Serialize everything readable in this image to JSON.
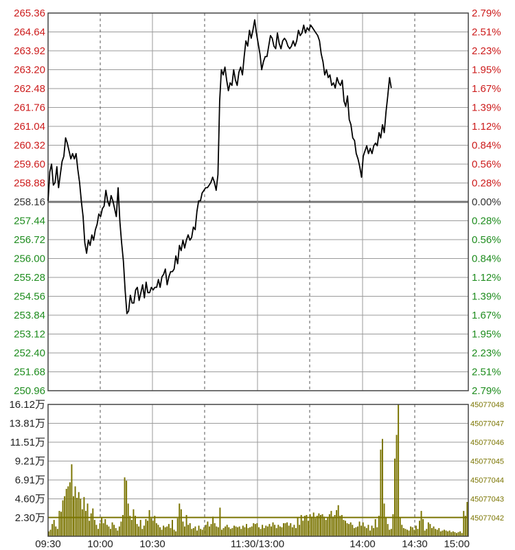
{
  "colors": {
    "up": "#cc1b1b",
    "down": "#1e8c1e",
    "base": "#333333",
    "price_line": "#000000",
    "volume_bar": "#7a7400",
    "grid": "#9a9a9a",
    "frame": "#444444"
  },
  "chart_data": [
    {
      "type": "line",
      "name": "intraday-price",
      "y_left_ticks": [
        "265.36",
        "264.64",
        "263.92",
        "263.20",
        "262.48",
        "261.76",
        "261.04",
        "260.32",
        "259.60",
        "258.88",
        "258.16",
        "257.44",
        "256.72",
        "256.00",
        "255.28",
        "254.56",
        "253.84",
        "253.12",
        "252.40",
        "251.68",
        "250.96"
      ],
      "y_right_ticks": [
        "2.79%",
        "2.51%",
        "2.23%",
        "1.95%",
        "1.67%",
        "1.39%",
        "1.12%",
        "0.84%",
        "0.56%",
        "0.28%",
        "0.00%",
        "0.28%",
        "0.56%",
        "0.84%",
        "1.12%",
        "1.39%",
        "1.67%",
        "1.95%",
        "2.23%",
        "2.51%",
        "2.79%"
      ],
      "base_price": 258.16,
      "ylim": [
        250.96,
        265.36
      ],
      "x_labels": [
        "09:30",
        "10:00",
        "10:30",
        "11:30/13:00",
        "14:00",
        "14:30",
        "15:00"
      ],
      "minutes_total": 240,
      "series": [
        {
          "points": [
            [
              0,
              258.2
            ],
            [
              1,
              259.3
            ],
            [
              2,
              259.6
            ],
            [
              3,
              258.8
            ],
            [
              4,
              258.9
            ],
            [
              5,
              259.5
            ],
            [
              6,
              258.7
            ],
            [
              7,
              259.2
            ],
            [
              8,
              259.7
            ],
            [
              9,
              259.9
            ],
            [
              10,
              260.6
            ],
            [
              11,
              260.4
            ],
            [
              12,
              260.1
            ],
            [
              13,
              259.8
            ],
            [
              14,
              260.0
            ],
            [
              15,
              259.8
            ],
            [
              16,
              260.0
            ],
            [
              17,
              259.4
            ],
            [
              18,
              258.9
            ],
            [
              19,
              258.2
            ],
            [
              20,
              257.6
            ],
            [
              21,
              256.6
            ],
            [
              22,
              256.2
            ],
            [
              23,
              256.7
            ],
            [
              24,
              256.5
            ],
            [
              25,
              256.9
            ],
            [
              26,
              256.7
            ],
            [
              27,
              257.1
            ],
            [
              28,
              257.3
            ],
            [
              29,
              257.7
            ],
            [
              30,
              257.6
            ],
            [
              31,
              257.9
            ],
            [
              32,
              258.0
            ],
            [
              33,
              258.6
            ],
            [
              34,
              258.2
            ],
            [
              35,
              258.0
            ],
            [
              36,
              258.4
            ],
            [
              37,
              258.2
            ],
            [
              38,
              257.9
            ],
            [
              39,
              257.6
            ],
            [
              40,
              258.7
            ],
            [
              41,
              257.4
            ],
            [
              42,
              256.6
            ],
            [
              43,
              255.9
            ],
            [
              44,
              254.8
            ],
            [
              45,
              253.9
            ],
            [
              46,
              254.0
            ],
            [
              47,
              254.6
            ],
            [
              48,
              254.3
            ],
            [
              49,
              254.3
            ],
            [
              50,
              254.8
            ],
            [
              51,
              254.9
            ],
            [
              52,
              254.4
            ],
            [
              53,
              254.7
            ],
            [
              54,
              255.0
            ],
            [
              55,
              254.5
            ],
            [
              56,
              255.1
            ],
            [
              57,
              254.7
            ],
            [
              58,
              254.7
            ],
            [
              59,
              254.9
            ],
            [
              60,
              254.8
            ],
            [
              61,
              254.9
            ],
            [
              62,
              254.9
            ],
            [
              63,
              255.2
            ],
            [
              64,
              254.9
            ],
            [
              65,
              255.3
            ],
            [
              66,
              255.4
            ],
            [
              67,
              255.6
            ],
            [
              68,
              255.0
            ],
            [
              69,
              255.3
            ],
            [
              70,
              255.5
            ],
            [
              71,
              255.5
            ],
            [
              72,
              255.6
            ],
            [
              73,
              256.1
            ],
            [
              74,
              255.8
            ],
            [
              75,
              256.5
            ],
            [
              76,
              256.3
            ],
            [
              77,
              256.7
            ],
            [
              78,
              256.4
            ],
            [
              79,
              256.7
            ],
            [
              80,
              256.9
            ],
            [
              81,
              256.7
            ],
            [
              82,
              256.8
            ],
            [
              83,
              257.2
            ],
            [
              84,
              257.1
            ],
            [
              85,
              257.8
            ],
            [
              86,
              258.2
            ],
            [
              87,
              258.2
            ],
            [
              88,
              258.5
            ],
            [
              89,
              258.6
            ],
            [
              90,
              258.7
            ],
            [
              91,
              258.7
            ],
            [
              92,
              258.8
            ],
            [
              93,
              258.9
            ],
            [
              94,
              259.1
            ],
            [
              95,
              258.9
            ],
            [
              96,
              258.6
            ],
            [
              97,
              259.2
            ],
            [
              98,
              262.0
            ],
            [
              99,
              263.2
            ],
            [
              100,
              263.0
            ],
            [
              101,
              263.3
            ],
            [
              102,
              262.8
            ],
            [
              103,
              262.4
            ],
            [
              104,
              262.7
            ],
            [
              105,
              262.6
            ],
            [
              106,
              263.2
            ],
            [
              107,
              262.8
            ],
            [
              108,
              262.6
            ],
            [
              109,
              263.1
            ],
            [
              110,
              263.3
            ],
            [
              111,
              263.0
            ],
            [
              112,
              263.7
            ],
            [
              113,
              264.3
            ],
            [
              114,
              264.1
            ],
            [
              115,
              264.7
            ],
            [
              116,
              264.4
            ],
            [
              117,
              264.7
            ],
            [
              118,
              265.1
            ],
            [
              119,
              264.6
            ],
            [
              120,
              264.2
            ],
            [
              121,
              263.8
            ],
            [
              122,
              263.2
            ],
            [
              123,
              263.5
            ],
            [
              124,
              263.7
            ],
            [
              125,
              263.7
            ],
            [
              126,
              264.1
            ],
            [
              127,
              264.5
            ],
            [
              128,
              264.4
            ],
            [
              129,
              264.1
            ],
            [
              130,
              264.0
            ],
            [
              131,
              264.6
            ],
            [
              132,
              264.2
            ],
            [
              133,
              264.0
            ],
            [
              134,
              264.3
            ],
            [
              135,
              264.4
            ],
            [
              136,
              264.3
            ],
            [
              137,
              264.1
            ],
            [
              138,
              264.0
            ],
            [
              139,
              264.1
            ],
            [
              140,
              264.3
            ],
            [
              141,
              264.1
            ],
            [
              142,
              264.3
            ],
            [
              143,
              264.7
            ],
            [
              144,
              264.5
            ],
            [
              145,
              264.6
            ],
            [
              146,
              264.9
            ],
            [
              147,
              264.6
            ],
            [
              148,
              264.8
            ],
            [
              149,
              264.7
            ],
            [
              150,
              264.9
            ],
            [
              151,
              264.8
            ],
            [
              152,
              264.7
            ],
            [
              153,
              264.6
            ],
            [
              154,
              264.5
            ],
            [
              155,
              264.3
            ],
            [
              156,
              263.8
            ],
            [
              157,
              263.5
            ],
            [
              158,
              263.0
            ],
            [
              159,
              263.2
            ],
            [
              160,
              262.9
            ],
            [
              161,
              263.0
            ],
            [
              162,
              262.6
            ],
            [
              163,
              262.7
            ],
            [
              164,
              262.5
            ],
            [
              165,
              262.9
            ],
            [
              166,
              262.7
            ],
            [
              167,
              262.6
            ],
            [
              168,
              262.8
            ],
            [
              169,
              262.0
            ],
            [
              170,
              261.8
            ],
            [
              171,
              262.2
            ],
            [
              172,
              261.3
            ],
            [
              173,
              261.1
            ],
            [
              174,
              260.6
            ],
            [
              175,
              260.5
            ],
            [
              176,
              260.0
            ],
            [
              177,
              259.8
            ],
            [
              178,
              259.5
            ],
            [
              179,
              259.1
            ],
            [
              180,
              259.9
            ],
            [
              181,
              260.1
            ],
            [
              182,
              260.3
            ],
            [
              183,
              260.0
            ],
            [
              184,
              260.2
            ],
            [
              185,
              260.0
            ],
            [
              186,
              260.3
            ],
            [
              187,
              260.4
            ],
            [
              188,
              260.3
            ],
            [
              189,
              260.8
            ],
            [
              190,
              260.6
            ],
            [
              191,
              261.1
            ],
            [
              192,
              260.8
            ],
            [
              193,
              261.6
            ],
            [
              194,
              262.2
            ],
            [
              195,
              262.9
            ],
            [
              196,
              262.5
            ]
          ]
        }
      ]
    },
    {
      "type": "bar",
      "name": "intraday-volume",
      "y_left_ticks": [
        "16.12万",
        "13.81万",
        "11.51万",
        "9.21万",
        "6.91万",
        "4.60万",
        "2.30万"
      ],
      "y_right_ticks": [
        "45077048",
        "45077047",
        "45077046",
        "45077045",
        "45077044",
        "45077043",
        "45077042"
      ],
      "unit": "万",
      "ylim": [
        0,
        16.12
      ],
      "reference_level": 2.3,
      "values": [
        0.6,
        0.8,
        1.5,
        2.0,
        1.2,
        0.9,
        3.1,
        3.0,
        4.4,
        4.9,
        5.8,
        6.1,
        6.6,
        8.8,
        4.9,
        6.1,
        4.7,
        5.4,
        4.6,
        3.3,
        4.8,
        3.1,
        4.0,
        1.9,
        2.8,
        3.4,
        2.0,
        1.4,
        0.9,
        1.6,
        2.3,
        1.6,
        2.1,
        1.4,
        1.2,
        0.9,
        1.7,
        1.4,
        1.0,
        0.7,
        1.2,
        1.8,
        2.6,
        7.2,
        6.8,
        4.0,
        2.5,
        2.0,
        3.3,
        2.5,
        1.5,
        1.2,
        2.0,
        0.9,
        1.3,
        2.1,
        1.9,
        3.2,
        2.2,
        1.9,
        2.5,
        1.6,
        1.4,
        1.1,
        0.8,
        1.3,
        1.1,
        1.2,
        1.5,
        1.0,
        2.0,
        0.8,
        0.6,
        2.2,
        4.0,
        3.3,
        1.8,
        1.2,
        2.6,
        1.4,
        1.6,
        0.9,
        1.0,
        1.2,
        0.7,
        1.3,
        0.9,
        0.8,
        1.1,
        1.4,
        1.8,
        1.2,
        1.5,
        2.4,
        1.6,
        1.2,
        1.1,
        3.5,
        0.8,
        1.0,
        1.2,
        1.4,
        1.1,
        0.9,
        1.0,
        1.3,
        1.2,
        1.1,
        1.2,
        0.9,
        1.3,
        1.1,
        1.5,
        1.0,
        1.1,
        1.2,
        1.6,
        1.5,
        1.6,
        1.1,
        0.9,
        1.4,
        1.0,
        1.3,
        1.2,
        1.5,
        1.2,
        1.7,
        1.4,
        1.0,
        1.4,
        1.2,
        1.1,
        1.6,
        1.6,
        1.7,
        1.3,
        1.6,
        1.1,
        1.4,
        1.0,
        2.3,
        1.4,
        2.6,
        1.9,
        2.5,
        2.6,
        1.9,
        2.7,
        2.4,
        2.9,
        2.2,
        2.5,
        2.8,
        2.6,
        2.7,
        2.4,
        2.0,
        2.3,
        2.7,
        3.1,
        2.4,
        2.6,
        3.2,
        3.8,
        2.5,
        2.6,
        2.0,
        1.9,
        1.6,
        1.5,
        1.7,
        1.4,
        1.0,
        1.1,
        1.2,
        1.8,
        1.3,
        1.7,
        1.2,
        1.0,
        1.4,
        0.7,
        1.3,
        1.0,
        2.1,
        1.1,
        2.5,
        10.6,
        11.9,
        4.0,
        2.3,
        1.5,
        0.8,
        0.9,
        2.7,
        9.5,
        12.4,
        16.3,
        2.3,
        1.4,
        1.0,
        0.9,
        0.8,
        0.7,
        1.2,
        1.1,
        0.8,
        1.3,
        0.9,
        1.9,
        3.1,
        2.1,
        0.7,
        0.9,
        1.7,
        1.5,
        1.0,
        1.2,
        0.9,
        0.8,
        1.0,
        0.6,
        0.7,
        0.8,
        0.7,
        0.6,
        0.7,
        0.5,
        0.6,
        0.5,
        0.4,
        0.5,
        0.6,
        0.4,
        3.1,
        2.5,
        4.2
      ]
    }
  ]
}
